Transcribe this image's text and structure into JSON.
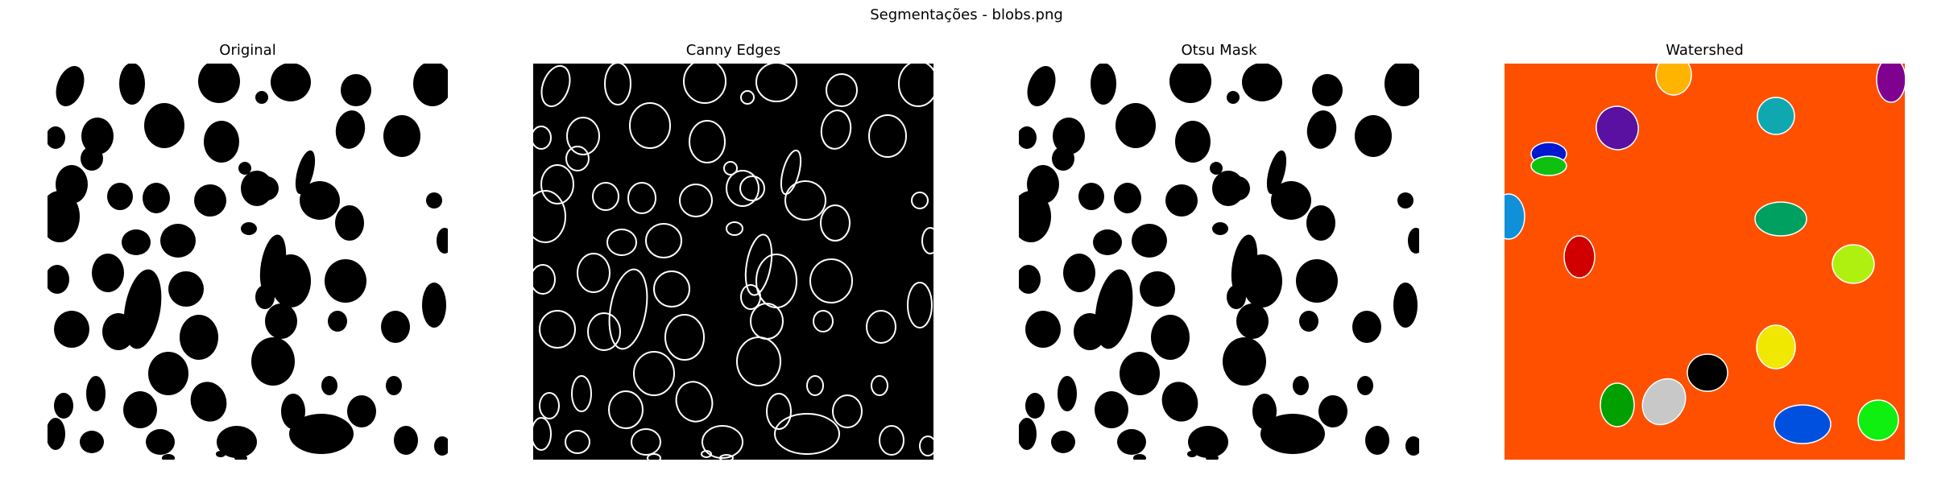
{
  "figure": {
    "suptitle": "Segmentações - blobs.png",
    "background": "#ffffff"
  },
  "panels": [
    {
      "title": "Original",
      "kind": "binary-image",
      "foreground": "#000000",
      "background": "#ffffff"
    },
    {
      "title": "Canny Edges",
      "kind": "edge-map",
      "foreground": "#ffffff",
      "background": "#000000"
    },
    {
      "title": "Otsu Mask",
      "kind": "binary-image",
      "foreground": "#000000",
      "background": "#ffffff"
    },
    {
      "title": "Watershed",
      "kind": "label-map",
      "background": "#ff5000",
      "region_colors": [
        "#ffb400",
        "#800090",
        "#5a10a0",
        "#10a8b0",
        "#0018d0",
        "#10c010",
        "#1090d8",
        "#00a060",
        "#d00000",
        "#b0f010",
        "#f0e800",
        "#00a000",
        "#c8c8c8",
        "#000000",
        "#0050e0",
        "#10f010"
      ]
    }
  ]
}
